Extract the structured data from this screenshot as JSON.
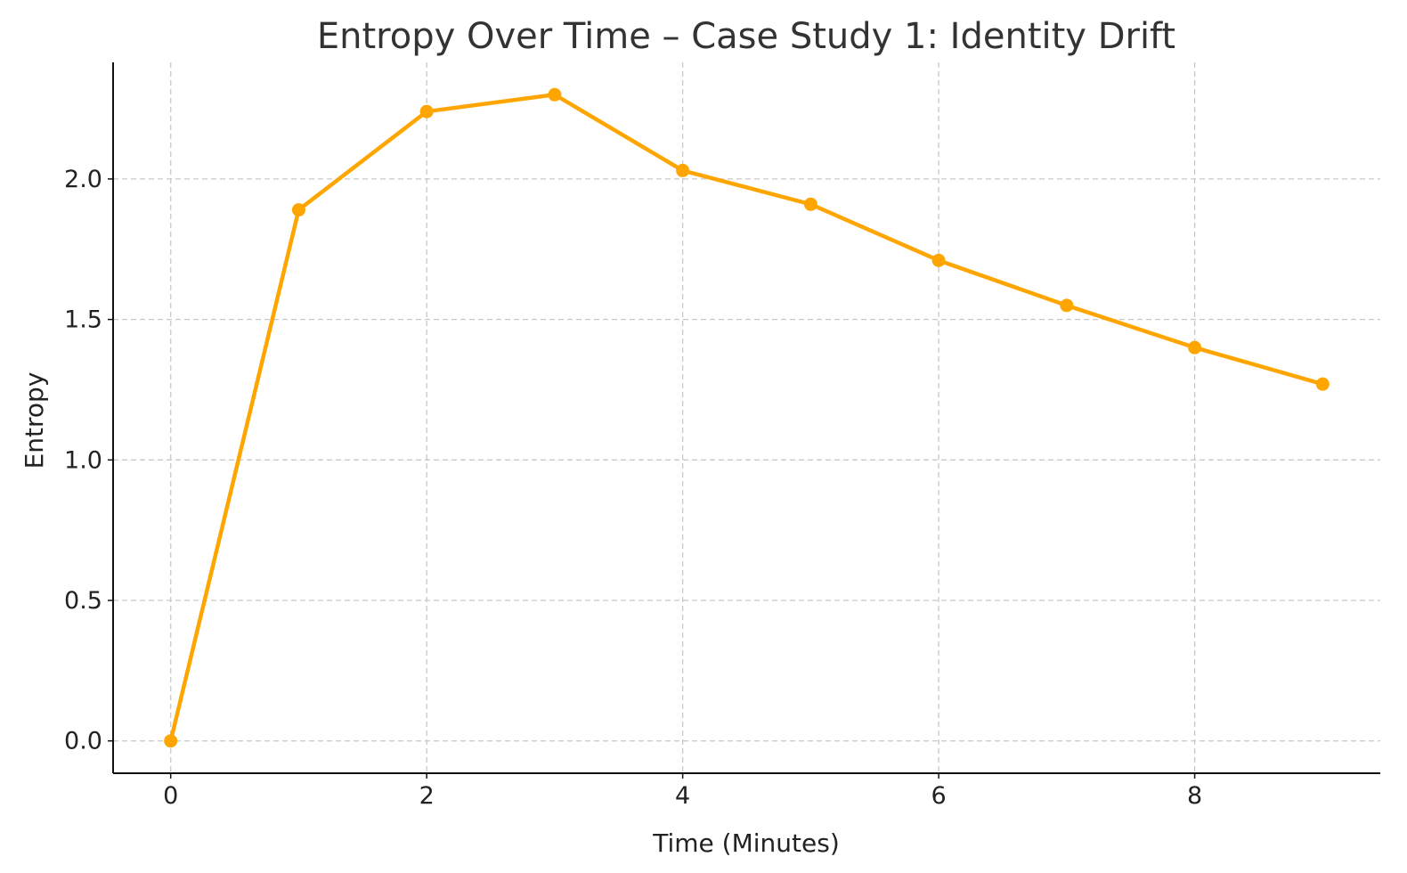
{
  "chart_data": {
    "type": "line",
    "title": "Entropy Over Time – Case Study 1: Identity Drift",
    "xlabel": "Time (Minutes)",
    "ylabel": "Entropy",
    "x": [
      0,
      1,
      2,
      3,
      4,
      5,
      6,
      7,
      8,
      9
    ],
    "series": [
      {
        "values": [
          0.0,
          1.89,
          2.24,
          2.3,
          2.03,
          1.91,
          1.71,
          1.55,
          1.4,
          1.27
        ],
        "color": "#FFA500",
        "marker": "circle"
      }
    ],
    "xlim": [
      -0.45,
      9.45
    ],
    "ylim": [
      -0.115,
      2.415
    ],
    "xticks": [
      0,
      2,
      4,
      6,
      8
    ],
    "xtick_labels": [
      "0",
      "2",
      "4",
      "6",
      "8"
    ],
    "yticks": [
      0.0,
      0.5,
      1.0,
      1.5,
      2.0
    ],
    "ytick_labels": [
      "0.0",
      "0.5",
      "1.0",
      "1.5",
      "2.0"
    ],
    "grid": true,
    "grid_style": "dashed",
    "axis_spines": [
      "left",
      "bottom"
    ]
  }
}
